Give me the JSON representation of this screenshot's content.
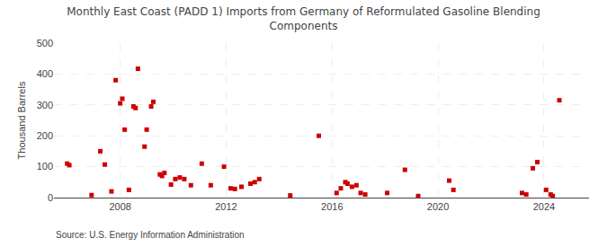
{
  "chart_data": {
    "type": "scatter",
    "title": "Monthly East Coast (PADD 1) Imports from Germany of Reformulated Gasoline Blending\nComponents",
    "ylabel": "Thousand Barrels",
    "source": "Source: U.S. Energy Information Administration",
    "color": "#cc0000",
    "marker": "square",
    "grid": true,
    "xlim": [
      2005.5,
      2025.7
    ],
    "ylim": [
      0,
      500
    ],
    "xticks": [
      2008,
      2012,
      2016,
      2020,
      2024
    ],
    "yticks": [
      0,
      100,
      200,
      300,
      400,
      500
    ],
    "x": [
      2006.0,
      2006.08,
      2006.92,
      2007.25,
      2007.42,
      2007.67,
      2007.83,
      2008.0,
      2008.08,
      2008.17,
      2008.33,
      2008.5,
      2008.58,
      2008.67,
      2008.92,
      2009.0,
      2009.17,
      2009.25,
      2009.5,
      2009.58,
      2009.67,
      2009.92,
      2010.08,
      2010.25,
      2010.42,
      2010.67,
      2011.08,
      2011.42,
      2011.92,
      2012.17,
      2012.33,
      2012.58,
      2012.92,
      2013.08,
      2013.25,
      2014.42,
      2015.5,
      2016.17,
      2016.33,
      2016.5,
      2016.58,
      2016.75,
      2016.92,
      2017.08,
      2017.25,
      2018.08,
      2018.75,
      2019.25,
      2020.42,
      2020.58,
      2023.17,
      2023.33,
      2023.58,
      2023.75,
      2024.08,
      2024.25,
      2024.33,
      2024.58
    ],
    "values": [
      110,
      105,
      8,
      150,
      107,
      20,
      380,
      305,
      320,
      220,
      25,
      295,
      290,
      417,
      165,
      220,
      295,
      310,
      75,
      70,
      80,
      42,
      60,
      65,
      60,
      40,
      110,
      40,
      100,
      30,
      28,
      35,
      45,
      50,
      60,
      7,
      200,
      15,
      30,
      50,
      45,
      35,
      40,
      15,
      10,
      15,
      90,
      5,
      55,
      25,
      15,
      10,
      95,
      115,
      25,
      10,
      5,
      315
    ]
  }
}
